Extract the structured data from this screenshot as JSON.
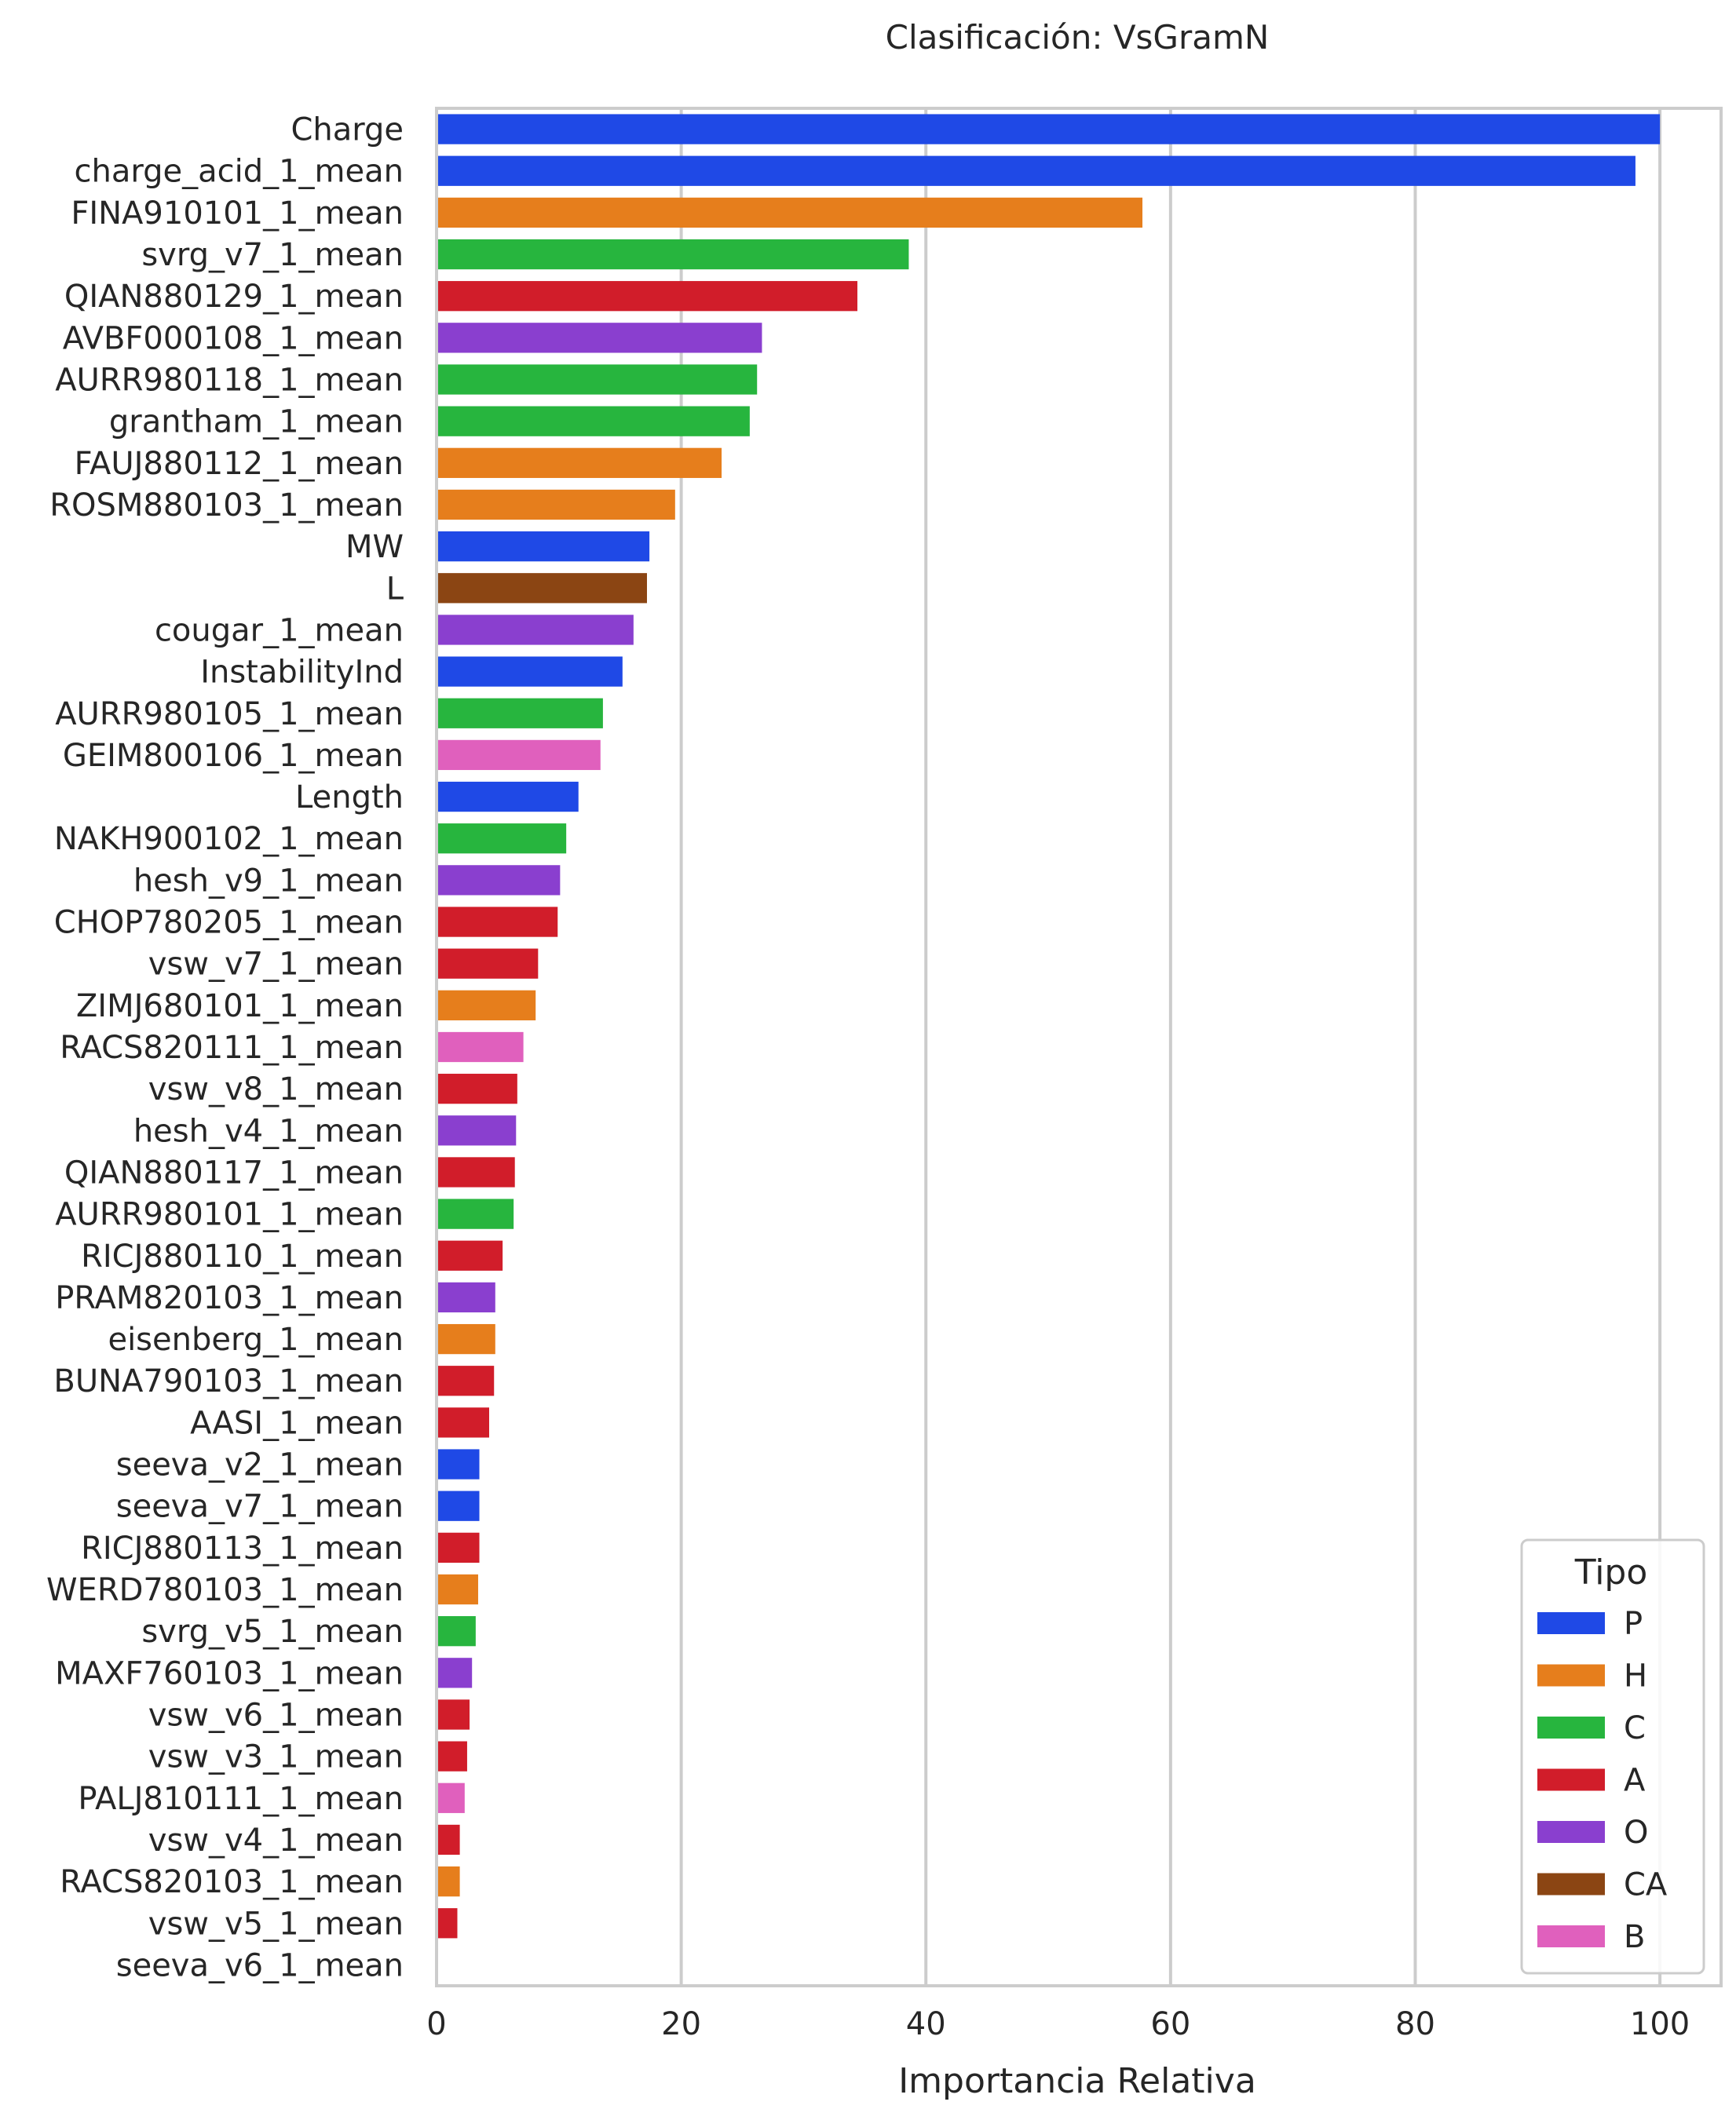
{
  "chart_data": {
    "type": "bar",
    "orientation": "horizontal",
    "title": "Clasificación: VsGramN",
    "xlabel": "Importancia Relativa",
    "ylabel": "",
    "xlim": [
      0,
      105
    ],
    "xticks": [
      "0",
      "20",
      "40",
      "60",
      "80",
      "100"
    ],
    "grid": "vertical",
    "legend": {
      "title": "Tipo",
      "placement": "lower-right",
      "entries": [
        {
          "label": "P",
          "color": "#1f49e6"
        },
        {
          "label": "H",
          "color": "#e67e1c"
        },
        {
          "label": "C",
          "color": "#27b53e"
        },
        {
          "label": "A",
          "color": "#d11d2a"
        },
        {
          "label": "O",
          "color": "#8a3fcf"
        },
        {
          "label": "CA",
          "color": "#8b4513"
        },
        {
          "label": "B",
          "color": "#e060bd"
        }
      ]
    },
    "bars": [
      {
        "label": "Charge",
        "value": 100,
        "type": "P"
      },
      {
        "label": "charge_acid_1_mean",
        "value": 98,
        "type": "P"
      },
      {
        "label": "FINA910101_1_mean",
        "value": 57.7,
        "type": "H"
      },
      {
        "label": "svrg_v7_1_mean",
        "value": 38.6,
        "type": "C"
      },
      {
        "label": "QIAN880129_1_mean",
        "value": 34.4,
        "type": "A"
      },
      {
        "label": "AVBF000108_1_mean",
        "value": 26.6,
        "type": "O"
      },
      {
        "label": "AURR980118_1_mean",
        "value": 26.2,
        "type": "C"
      },
      {
        "label": "grantham_1_mean",
        "value": 25.6,
        "type": "C"
      },
      {
        "label": "FAUJ880112_1_mean",
        "value": 23.3,
        "type": "H"
      },
      {
        "label": "ROSM880103_1_mean",
        "value": 19.5,
        "type": "H"
      },
      {
        "label": "MW",
        "value": 17.4,
        "type": "P"
      },
      {
        "label": "L",
        "value": 17.2,
        "type": "CA"
      },
      {
        "label": "cougar_1_mean",
        "value": 16.1,
        "type": "O"
      },
      {
        "label": "InstabilityInd",
        "value": 15.2,
        "type": "P"
      },
      {
        "label": "AURR980105_1_mean",
        "value": 13.6,
        "type": "C"
      },
      {
        "label": "GEIM800106_1_mean",
        "value": 13.4,
        "type": "B"
      },
      {
        "label": "Length",
        "value": 11.6,
        "type": "P"
      },
      {
        "label": "NAKH900102_1_mean",
        "value": 10.6,
        "type": "C"
      },
      {
        "label": "hesh_v9_1_mean",
        "value": 10.1,
        "type": "O"
      },
      {
        "label": "CHOP780205_1_mean",
        "value": 9.9,
        "type": "A"
      },
      {
        "label": "vsw_v7_1_mean",
        "value": 8.3,
        "type": "A"
      },
      {
        "label": "ZIMJ680101_1_mean",
        "value": 8.1,
        "type": "H"
      },
      {
        "label": "RACS820111_1_mean",
        "value": 7.1,
        "type": "B"
      },
      {
        "label": "vsw_v8_1_mean",
        "value": 6.6,
        "type": "A"
      },
      {
        "label": "hesh_v4_1_mean",
        "value": 6.5,
        "type": "O"
      },
      {
        "label": "QIAN880117_1_mean",
        "value": 6.4,
        "type": "A"
      },
      {
        "label": "AURR980101_1_mean",
        "value": 6.3,
        "type": "C"
      },
      {
        "label": "RICJ880110_1_mean",
        "value": 5.4,
        "type": "A"
      },
      {
        "label": "PRAM820103_1_mean",
        "value": 4.8,
        "type": "O"
      },
      {
        "label": "eisenberg_1_mean",
        "value": 4.8,
        "type": "H"
      },
      {
        "label": "BUNA790103_1_mean",
        "value": 4.7,
        "type": "A"
      },
      {
        "label": "AASI_1_mean",
        "value": 4.3,
        "type": "A"
      },
      {
        "label": "seeva_v2_1_mean",
        "value": 3.5,
        "type": "P"
      },
      {
        "label": "seeva_v7_1_mean",
        "value": 3.5,
        "type": "P"
      },
      {
        "label": "RICJ880113_1_mean",
        "value": 3.5,
        "type": "A"
      },
      {
        "label": "WERD780103_1_mean",
        "value": 3.4,
        "type": "H"
      },
      {
        "label": "svrg_v5_1_mean",
        "value": 3.2,
        "type": "C"
      },
      {
        "label": "MAXF760103_1_mean",
        "value": 2.9,
        "type": "O"
      },
      {
        "label": "vsw_v6_1_mean",
        "value": 2.7,
        "type": "A"
      },
      {
        "label": "vsw_v3_1_mean",
        "value": 2.5,
        "type": "A"
      },
      {
        "label": "PALJ810111_1_mean",
        "value": 2.3,
        "type": "B"
      },
      {
        "label": "vsw_v4_1_mean",
        "value": 1.9,
        "type": "A"
      },
      {
        "label": "RACS820103_1_mean",
        "value": 1.9,
        "type": "H"
      },
      {
        "label": "vsw_v5_1_mean",
        "value": 1.7,
        "type": "A"
      },
      {
        "label": "seeva_v6_1_mean",
        "value": 0,
        "type": "P"
      }
    ]
  }
}
